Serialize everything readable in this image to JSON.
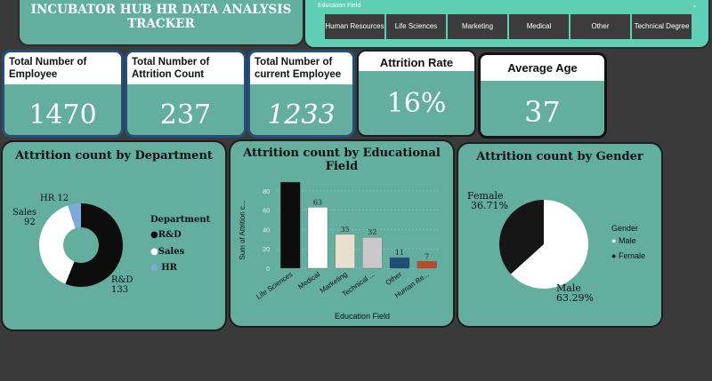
{
  "header": {
    "title": "INCUBATOR HUB HR DATA ANALYSIS TRACKER"
  },
  "slicer": {
    "title": "Education Field",
    "chevron": "⌄",
    "options": [
      "Human Resources",
      "Life Sciences",
      "Marketing",
      "Medical",
      "Other",
      "Technical Degree"
    ]
  },
  "kpis": {
    "total_employee": {
      "label": "Total Number of Employee",
      "value": "1470"
    },
    "attrition_count": {
      "label": "Total Number of Attrition Count",
      "value": "237"
    },
    "current_employee": {
      "label": "Total Number of current Employee",
      "value": "1233"
    },
    "attrition_rate": {
      "label": "Attrition Rate",
      "value": "16%"
    },
    "average_age": {
      "label": "Average Age",
      "value": "37"
    }
  },
  "colors": {
    "teal": "#63ae9f",
    "slicer": "#5fd0b6",
    "dark": "#3a3a3a"
  },
  "chart_data": [
    {
      "type": "pie",
      "title": "Attrition count by Department",
      "legend_title": "Department",
      "legend_placement": "right",
      "slices": [
        {
          "label": "R&D",
          "value": 133,
          "color": "#0d0d0d"
        },
        {
          "label": "Sales",
          "value": 92,
          "color": "#ffffff"
        },
        {
          "label": "HR",
          "value": 12,
          "color": "#7fa9d8"
        }
      ]
    },
    {
      "type": "bar",
      "title": "Attrition count by Educational Field",
      "xlabel": "Education Field",
      "ylabel": "Sum of Attrition c...",
      "ylim": [
        0,
        90
      ],
      "yticks": [
        0,
        20,
        40,
        60,
        80
      ],
      "categories": [
        "Life Sciences",
        "Medical",
        "Marketing",
        "Technical ...",
        "Other",
        "Human Re..."
      ],
      "values": [
        89,
        63,
        35,
        32,
        11,
        7
      ],
      "colors": [
        "#0d0d0d",
        "#ffffff",
        "#e8dfcc",
        "#c9c9c9",
        "#1f4e79",
        "#c0482a"
      ],
      "data_labels": [
        "",
        "63",
        "35",
        "32",
        "11",
        "7"
      ]
    },
    {
      "type": "pie",
      "title": "Attrition count by Gender",
      "legend_title": "Gender",
      "legend_placement": "right",
      "slices": [
        {
          "label": "Male",
          "value": 63.29,
          "display": "63.29%",
          "color": "#ffffff"
        },
        {
          "label": "Female",
          "value": 36.71,
          "display": "36.71%",
          "color": "#161616"
        }
      ]
    }
  ]
}
